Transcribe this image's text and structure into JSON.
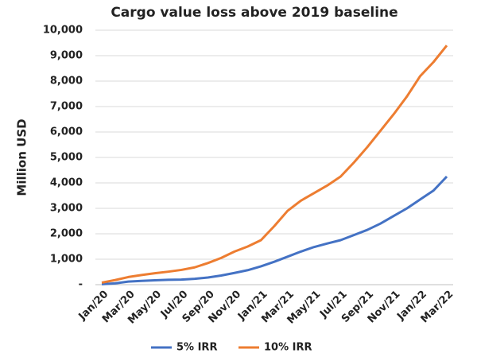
{
  "chart_data": {
    "type": "line",
    "title": "Cargo value loss above 2019 baseline",
    "y_label": "Million USD",
    "categories": [
      "Jan/20",
      null,
      "Mar/20",
      null,
      "May/20",
      null,
      "Jul/20",
      null,
      "Sep/20",
      null,
      "Nov/20",
      null,
      "Jan/21",
      null,
      "Mar/21",
      null,
      "May/21",
      null,
      "Jul/21",
      null,
      "Sep/21",
      null,
      "Nov/21",
      null,
      "Jan/22",
      null,
      "Mar/22"
    ],
    "series": [
      {
        "name": "5% IRR",
        "color": "#4472c4",
        "values": [
          20,
          50,
          120,
          150,
          170,
          190,
          200,
          230,
          280,
          360,
          460,
          570,
          720,
          900,
          1100,
          1300,
          1480,
          1620,
          1750,
          1950,
          2150,
          2400,
          2700,
          3000,
          3350,
          3700,
          4250
        ]
      },
      {
        "name": "10% IRR",
        "color": "#ed7d31",
        "values": [
          80,
          180,
          300,
          380,
          450,
          510,
          580,
          680,
          850,
          1050,
          1300,
          1500,
          1750,
          2300,
          2900,
          3300,
          3600,
          3900,
          4250,
          4800,
          5400,
          6050,
          6700,
          7400,
          8200,
          8750,
          9400
        ]
      }
    ],
    "ylim": [
      0,
      10000
    ],
    "yticks": [
      {
        "value": 0,
        "label": "-"
      },
      {
        "value": 1000,
        "label": "1,000"
      },
      {
        "value": 2000,
        "label": "2,000"
      },
      {
        "value": 3000,
        "label": "3,000"
      },
      {
        "value": 4000,
        "label": "4,000"
      },
      {
        "value": 5000,
        "label": "5,000"
      },
      {
        "value": 6000,
        "label": "6,000"
      },
      {
        "value": 7000,
        "label": "7,000"
      },
      {
        "value": 8000,
        "label": "8,000"
      },
      {
        "value": 9000,
        "label": "9,000"
      },
      {
        "value": 10000,
        "label": "10,000"
      }
    ],
    "grid": true
  }
}
